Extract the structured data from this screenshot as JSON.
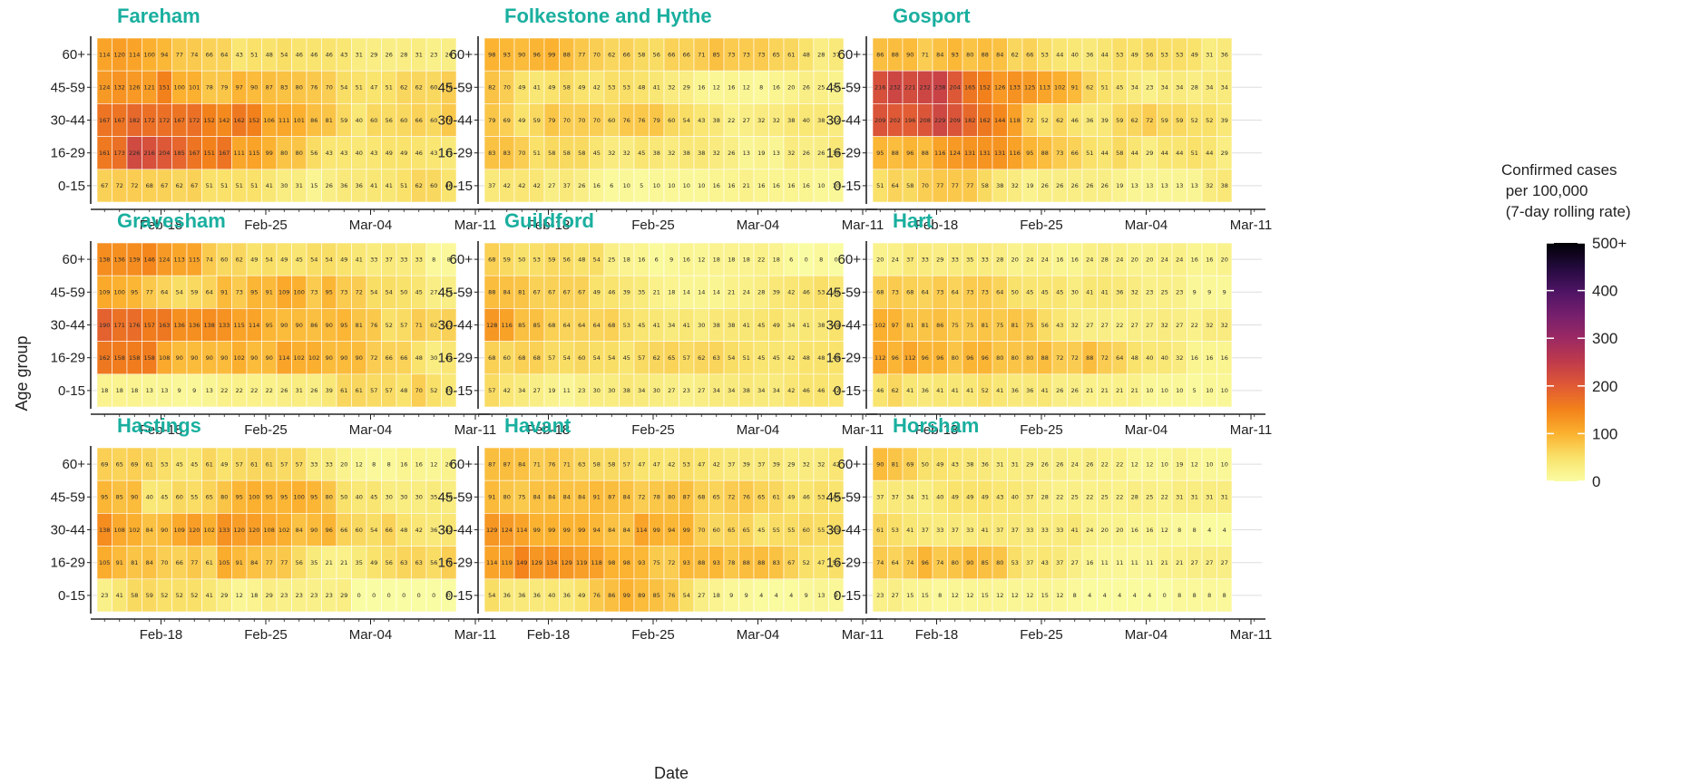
{
  "chart_data": {
    "type": "heatmap",
    "xlabel": "Date",
    "ylabel": "Age group",
    "age_groups": [
      "60+",
      "45-59",
      "30-44",
      "16-29",
      "0-15"
    ],
    "x_tick_labels": [
      "Feb-18",
      "Feb-25",
      "Mar-04",
      "Mar-11"
    ],
    "legend": {
      "title_lines": [
        "Confirmed cases",
        " per 100,000",
        " (7-day rolling rate)"
      ],
      "ticks": [
        "500+",
        "400",
        "300",
        "200",
        "100",
        "0"
      ],
      "tick_values": [
        500,
        400,
        300,
        200,
        100,
        0
      ],
      "range": [
        0,
        500
      ]
    },
    "panels": [
      {
        "title": "Fareham",
        "rows": [
          [
            114,
            120,
            114,
            100,
            94,
            77,
            74,
            66,
            64,
            43,
            51,
            48,
            54,
            46,
            46,
            46,
            43,
            31,
            29,
            26,
            28,
            31,
            23,
            26
          ],
          [
            124,
            132,
            126,
            121,
            151,
            100,
            101,
            78,
            79,
            97,
            90,
            87,
            83,
            80,
            76,
            70,
            54,
            51,
            47,
            51,
            62,
            62,
            60,
            70
          ],
          [
            167,
            167,
            182,
            172,
            172,
            167,
            172,
            152,
            142,
            162,
            152,
            106,
            111,
            101,
            86,
            81,
            59,
            40,
            60,
            56,
            60,
            66,
            60,
            76
          ],
          [
            161,
            173,
            226,
            216,
            204,
            185,
            167,
            151,
            167,
            111,
            115,
            99,
            80,
            80,
            56,
            43,
            43,
            40,
            43,
            49,
            49,
            46,
            43,
            37
          ],
          [
            67,
            72,
            72,
            68,
            67,
            62,
            67,
            51,
            51,
            51,
            51,
            41,
            30,
            31,
            15,
            26,
            36,
            36,
            41,
            41,
            51,
            62,
            60,
            46
          ]
        ]
      },
      {
        "title": "Folkestone and Hythe",
        "rows": [
          [
            98,
            93,
            90,
            96,
            99,
            88,
            77,
            70,
            62,
            66,
            58,
            56,
            66,
            66,
            71,
            85,
            73,
            73,
            73,
            65,
            61,
            48,
            28,
            37
          ],
          [
            82,
            70,
            49,
            41,
            49,
            58,
            49,
            42,
            53,
            53,
            48,
            41,
            32,
            29,
            16,
            12,
            16,
            12,
            8,
            16,
            20,
            26,
            25,
            20
          ],
          [
            79,
            69,
            49,
            59,
            79,
            70,
            70,
            70,
            60,
            76,
            76,
            79,
            60,
            54,
            43,
            38,
            22,
            27,
            32,
            32,
            38,
            40,
            38,
            32
          ],
          [
            83,
            83,
            70,
            51,
            58,
            58,
            58,
            45,
            32,
            32,
            45,
            38,
            32,
            38,
            38,
            32,
            26,
            13,
            19,
            13,
            32,
            26,
            26,
            38
          ],
          [
            37,
            42,
            42,
            42,
            27,
            37,
            26,
            16,
            6,
            10,
            5,
            10,
            10,
            10,
            10,
            16,
            16,
            21,
            16,
            16,
            16,
            16,
            10,
            10
          ]
        ]
      },
      {
        "title": "Gosport",
        "rows": [
          [
            86,
            88,
            90,
            71,
            84,
            93,
            80,
            88,
            84,
            62,
            66,
            53,
            44,
            40,
            36,
            44,
            53,
            49,
            56,
            53,
            53,
            49,
            31,
            36
          ],
          [
            216,
            232,
            221,
            232,
            238,
            204,
            165,
            152,
            126,
            133,
            125,
            113,
            102,
            91,
            62,
            51,
            45,
            34,
            23,
            34,
            34,
            28,
            34,
            34
          ],
          [
            209,
            202,
            196,
            208,
            229,
            209,
            182,
            162,
            144,
            118,
            72,
            52,
            62,
            46,
            36,
            39,
            59,
            62,
            72,
            59,
            59,
            52,
            52,
            39
          ],
          [
            95,
            88,
            96,
            88,
            116,
            124,
            131,
            131,
            131,
            116,
            95,
            88,
            73,
            66,
            51,
            44,
            58,
            44,
            29,
            44,
            44,
            51,
            44,
            29
          ],
          [
            51,
            64,
            58,
            70,
            77,
            77,
            77,
            58,
            38,
            32,
            19,
            26,
            26,
            26,
            26,
            26,
            19,
            13,
            13,
            13,
            13,
            13,
            32,
            38
          ]
        ]
      },
      {
        "title": "Gravesham",
        "rows": [
          [
            138,
            136,
            139,
            146,
            124,
            113,
            115,
            74,
            60,
            62,
            49,
            54,
            49,
            45,
            54,
            54,
            49,
            41,
            33,
            37,
            33,
            33,
            8,
            8
          ],
          [
            109,
            100,
            95,
            77,
            64,
            54,
            59,
            64,
            91,
            73,
            95,
            91,
            109,
            100,
            73,
            95,
            73,
            72,
            54,
            54,
            50,
            45,
            27,
            27
          ],
          [
            190,
            171,
            176,
            157,
            163,
            136,
            136,
            138,
            133,
            115,
            114,
            95,
            90,
            90,
            86,
            90,
            95,
            81,
            76,
            52,
            57,
            71,
            62,
            67
          ],
          [
            162,
            158,
            158,
            158,
            108,
            90,
            90,
            90,
            90,
            102,
            90,
            90,
            114,
            102,
            102,
            90,
            90,
            90,
            72,
            66,
            66,
            48,
            30,
            42
          ],
          [
            18,
            18,
            18,
            13,
            13,
            9,
            9,
            13,
            22,
            22,
            22,
            22,
            26,
            31,
            26,
            39,
            61,
            61,
            57,
            57,
            48,
            70,
            52,
            39
          ]
        ]
      },
      {
        "title": "Guildford",
        "rows": [
          [
            68,
            59,
            50,
            53,
            59,
            56,
            48,
            54,
            25,
            18,
            16,
            6,
            9,
            16,
            12,
            18,
            18,
            18,
            22,
            18,
            6,
            0,
            8,
            0
          ],
          [
            88,
            84,
            81,
            67,
            67,
            67,
            67,
            49,
            46,
            39,
            35,
            21,
            18,
            14,
            14,
            14,
            21,
            24,
            28,
            39,
            42,
            46,
            53,
            42
          ],
          [
            128,
            116,
            85,
            85,
            68,
            64,
            64,
            64,
            68,
            53,
            45,
            41,
            34,
            41,
            30,
            38,
            38,
            41,
            45,
            49,
            34,
            41,
            38,
            49
          ],
          [
            68,
            60,
            68,
            68,
            57,
            54,
            60,
            54,
            54,
            45,
            57,
            62,
            65,
            57,
            62,
            63,
            54,
            51,
            45,
            45,
            42,
            48,
            48,
            48
          ],
          [
            57,
            42,
            34,
            27,
            19,
            11,
            23,
            30,
            30,
            38,
            34,
            30,
            27,
            23,
            27,
            34,
            34,
            38,
            34,
            34,
            42,
            46,
            46,
            42
          ]
        ]
      },
      {
        "title": "Hart",
        "rows": [
          [
            20,
            24,
            37,
            33,
            29,
            33,
            35,
            33,
            28,
            20,
            24,
            24,
            16,
            16,
            24,
            28,
            24,
            20,
            20,
            24,
            24,
            16,
            16,
            20
          ],
          [
            68,
            73,
            68,
            64,
            73,
            64,
            73,
            73,
            64,
            50,
            45,
            45,
            45,
            30,
            41,
            41,
            36,
            32,
            23,
            25,
            23,
            9,
            9,
            9
          ],
          [
            102,
            97,
            81,
            81,
            86,
            75,
            75,
            81,
            75,
            81,
            75,
            56,
            43,
            32,
            27,
            27,
            22,
            27,
            27,
            32,
            27,
            22,
            32,
            32
          ],
          [
            112,
            96,
            112,
            96,
            96,
            80,
            96,
            96,
            80,
            80,
            80,
            88,
            72,
            72,
            88,
            72,
            64,
            48,
            40,
            40,
            32,
            16,
            16,
            16
          ],
          [
            46,
            62,
            41,
            36,
            41,
            41,
            41,
            52,
            41,
            36,
            36,
            41,
            26,
            26,
            21,
            21,
            21,
            21,
            10,
            10,
            10,
            5,
            10,
            10
          ]
        ]
      },
      {
        "title": "Hastings",
        "rows": [
          [
            69,
            65,
            69,
            61,
            53,
            45,
            45,
            61,
            49,
            57,
            61,
            61,
            57,
            57,
            33,
            33,
            20,
            12,
            8,
            8,
            16,
            16,
            12,
            20
          ],
          [
            95,
            85,
            90,
            40,
            45,
            60,
            55,
            65,
            80,
            95,
            100,
            95,
            95,
            100,
            95,
            80,
            50,
            40,
            45,
            30,
            30,
            30,
            35,
            30
          ],
          [
            138,
            108,
            102,
            84,
            90,
            109,
            120,
            102,
            133,
            120,
            120,
            108,
            102,
            84,
            90,
            96,
            66,
            60,
            54,
            66,
            48,
            42,
            36,
            42
          ],
          [
            105,
            91,
            81,
            84,
            70,
            66,
            77,
            61,
            105,
            91,
            84,
            77,
            77,
            56,
            35,
            21,
            21,
            35,
            49,
            56,
            63,
            63,
            56,
            70
          ],
          [
            23,
            41,
            58,
            59,
            52,
            52,
            52,
            41,
            29,
            12,
            18,
            29,
            23,
            23,
            23,
            23,
            29,
            0,
            0,
            0,
            0,
            0,
            0,
            0
          ]
        ]
      },
      {
        "title": "Havant",
        "rows": [
          [
            87,
            87,
            84,
            71,
            76,
            71,
            63,
            58,
            58,
            57,
            47,
            47,
            42,
            53,
            47,
            42,
            37,
            39,
            37,
            39,
            29,
            32,
            32,
            42
          ],
          [
            91,
            80,
            75,
            84,
            84,
            84,
            84,
            91,
            87,
            84,
            72,
            78,
            80,
            87,
            68,
            65,
            72,
            76,
            65,
            61,
            49,
            46,
            53,
            46
          ],
          [
            129,
            124,
            114,
            99,
            99,
            99,
            99,
            94,
            84,
            84,
            114,
            99,
            94,
            99,
            70,
            60,
            65,
            65,
            45,
            55,
            55,
            60,
            55,
            55
          ],
          [
            114,
            119,
            149,
            129,
            134,
            129,
            119,
            118,
            98,
            98,
            93,
            75,
            72,
            93,
            88,
            93,
            78,
            88,
            88,
            83,
            67,
            52,
            47,
            52
          ],
          [
            54,
            36,
            36,
            36,
            40,
            36,
            49,
            76,
            86,
            99,
            89,
            85,
            76,
            54,
            27,
            18,
            9,
            9,
            4,
            4,
            4,
            9,
            13,
            9
          ]
        ]
      },
      {
        "title": "Horsham",
        "rows": [
          [
            90,
            81,
            69,
            50,
            49,
            43,
            38,
            36,
            31,
            31,
            29,
            26,
            26,
            24,
            26,
            22,
            22,
            12,
            12,
            10,
            19,
            12,
            10,
            10
          ],
          [
            37,
            37,
            34,
            31,
            40,
            49,
            49,
            49,
            43,
            40,
            37,
            28,
            22,
            25,
            22,
            25,
            22,
            28,
            25,
            22,
            31,
            31,
            31,
            31
          ],
          [
            61,
            53,
            41,
            37,
            33,
            37,
            33,
            41,
            37,
            37,
            33,
            33,
            33,
            41,
            24,
            20,
            20,
            16,
            16,
            12,
            8,
            8,
            4,
            4
          ],
          [
            74,
            64,
            74,
            96,
            74,
            80,
            90,
            85,
            80,
            53,
            37,
            43,
            37,
            27,
            16,
            11,
            11,
            11,
            11,
            21,
            21,
            27,
            27,
            27
          ],
          [
            23,
            27,
            15,
            15,
            8,
            12,
            12,
            15,
            12,
            12,
            12,
            15,
            12,
            8,
            4,
            4,
            4,
            4,
            4,
            0,
            8,
            8,
            8,
            8
          ]
        ]
      }
    ]
  }
}
